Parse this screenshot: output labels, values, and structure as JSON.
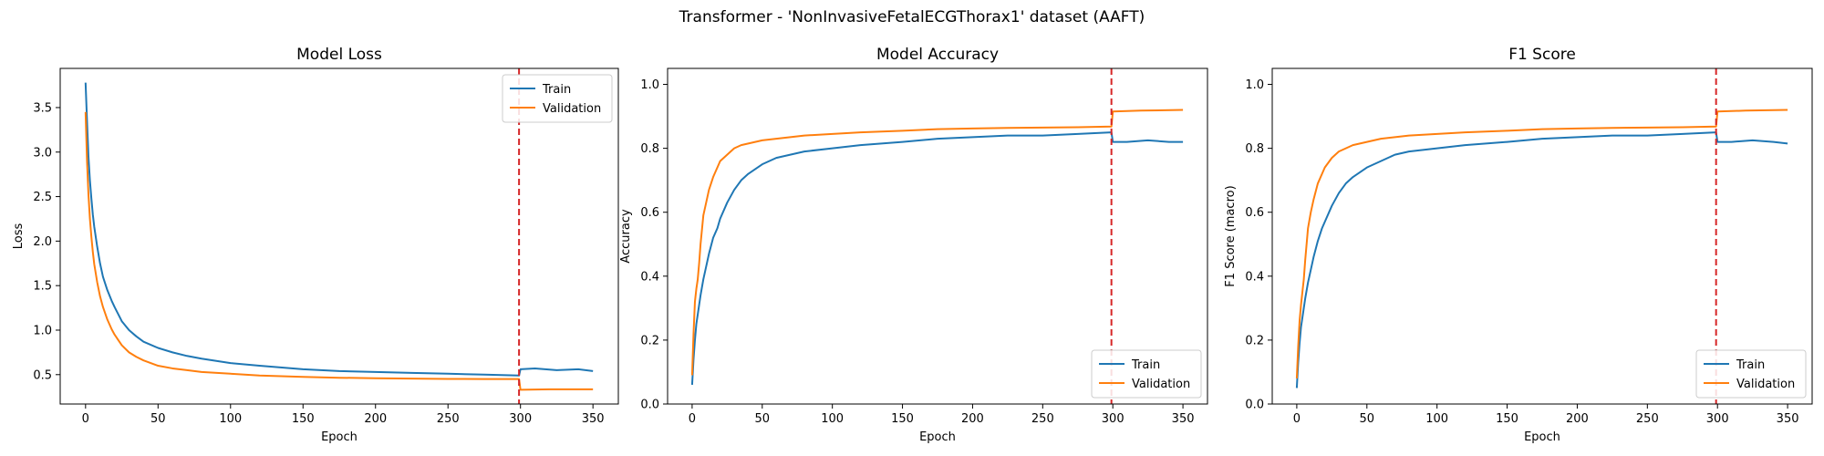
{
  "figure": {
    "suptitle": "Transformer - 'NonInvasiveFetalECGThorax1' dataset (AAFT)"
  },
  "colors": {
    "train": "#1f77b4",
    "validation": "#ff7f0e",
    "divider": "#d62728"
  },
  "chart_data": [
    {
      "type": "line",
      "title": "Model Loss",
      "xlabel": "Epoch",
      "ylabel": "Loss",
      "xlim": [
        -17.5,
        367.5
      ],
      "ylim": [
        0.17,
        3.94
      ],
      "xticks": [
        0,
        50,
        100,
        150,
        200,
        250,
        300,
        350
      ],
      "yticks": [
        0.5,
        1.0,
        1.5,
        2.0,
        2.5,
        3.0,
        3.5
      ],
      "ytick_labels": [
        "0.5",
        "1.0",
        "1.5",
        "2.0",
        "2.5",
        "3.0",
        "3.5"
      ],
      "vline_x": 299,
      "legend_position": "upper right",
      "series": [
        {
          "name": "Train",
          "x": [
            0,
            1,
            2,
            3,
            4,
            5,
            6,
            8,
            10,
            12,
            15,
            18,
            20,
            25,
            30,
            35,
            40,
            50,
            60,
            70,
            80,
            100,
            120,
            150,
            175,
            200,
            225,
            250,
            275,
            299,
            300,
            310,
            325,
            340,
            350
          ],
          "y": [
            3.78,
            3.35,
            2.95,
            2.68,
            2.48,
            2.3,
            2.16,
            1.94,
            1.75,
            1.6,
            1.45,
            1.33,
            1.26,
            1.1,
            1.0,
            0.93,
            0.87,
            0.8,
            0.75,
            0.71,
            0.68,
            0.63,
            0.6,
            0.56,
            0.54,
            0.53,
            0.52,
            0.51,
            0.5,
            0.49,
            0.56,
            0.57,
            0.55,
            0.56,
            0.54
          ]
        },
        {
          "name": "Validation",
          "x": [
            0,
            1,
            2,
            3,
            4,
            5,
            6,
            8,
            10,
            12,
            15,
            18,
            20,
            25,
            30,
            35,
            40,
            50,
            60,
            70,
            80,
            100,
            120,
            150,
            175,
            200,
            225,
            250,
            275,
            299,
            300,
            320,
            350
          ],
          "y": [
            3.45,
            2.9,
            2.52,
            2.25,
            2.05,
            1.88,
            1.74,
            1.54,
            1.38,
            1.26,
            1.12,
            1.01,
            0.95,
            0.83,
            0.75,
            0.7,
            0.66,
            0.6,
            0.57,
            0.55,
            0.53,
            0.51,
            0.49,
            0.475,
            0.465,
            0.46,
            0.455,
            0.452,
            0.45,
            0.45,
            0.33,
            0.335,
            0.335
          ]
        }
      ]
    },
    {
      "type": "line",
      "title": "Model Accuracy",
      "xlabel": "Epoch",
      "ylabel": "Accuracy",
      "xlim": [
        -17.5,
        367.5
      ],
      "ylim": [
        0.0,
        1.05
      ],
      "xticks": [
        0,
        50,
        100,
        150,
        200,
        250,
        300,
        350
      ],
      "yticks": [
        0.0,
        0.2,
        0.4,
        0.6,
        0.8,
        1.0
      ],
      "ytick_labels": [
        "0.0",
        "0.2",
        "0.4",
        "0.6",
        "0.8",
        "1.0"
      ],
      "vline_x": 299,
      "legend_position": "lower right",
      "series": [
        {
          "name": "Train",
          "x": [
            0,
            1,
            2,
            3,
            4,
            5,
            6,
            8,
            10,
            12,
            15,
            18,
            20,
            25,
            30,
            35,
            40,
            50,
            60,
            70,
            80,
            100,
            120,
            150,
            175,
            200,
            225,
            250,
            275,
            299,
            300,
            310,
            325,
            340,
            350
          ],
          "y": [
            0.06,
            0.14,
            0.2,
            0.25,
            0.28,
            0.31,
            0.34,
            0.39,
            0.43,
            0.47,
            0.52,
            0.55,
            0.58,
            0.63,
            0.67,
            0.7,
            0.72,
            0.75,
            0.77,
            0.78,
            0.79,
            0.8,
            0.81,
            0.82,
            0.83,
            0.835,
            0.84,
            0.84,
            0.845,
            0.85,
            0.82,
            0.82,
            0.825,
            0.82,
            0.82
          ]
        },
        {
          "name": "Validation",
          "x": [
            0,
            1,
            2,
            3,
            4,
            5,
            6,
            8,
            10,
            12,
            15,
            18,
            20,
            25,
            30,
            35,
            40,
            50,
            60,
            70,
            80,
            100,
            120,
            150,
            175,
            200,
            225,
            250,
            275,
            299,
            300,
            320,
            350
          ],
          "y": [
            0.09,
            0.22,
            0.32,
            0.36,
            0.39,
            0.44,
            0.5,
            0.59,
            0.63,
            0.67,
            0.71,
            0.74,
            0.76,
            0.78,
            0.8,
            0.81,
            0.815,
            0.825,
            0.83,
            0.835,
            0.84,
            0.845,
            0.85,
            0.855,
            0.86,
            0.862,
            0.864,
            0.865,
            0.866,
            0.868,
            0.915,
            0.918,
            0.92
          ]
        }
      ]
    },
    {
      "type": "line",
      "title": "F1 Score",
      "xlabel": "Epoch",
      "ylabel": "F1 Score (macro)",
      "xlim": [
        -17.5,
        367.5
      ],
      "ylim": [
        0.0,
        1.05
      ],
      "xticks": [
        0,
        50,
        100,
        150,
        200,
        250,
        300,
        350
      ],
      "yticks": [
        0.0,
        0.2,
        0.4,
        0.6,
        0.8,
        1.0
      ],
      "ytick_labels": [
        "0.0",
        "0.2",
        "0.4",
        "0.6",
        "0.8",
        "1.0"
      ],
      "vline_x": 299,
      "legend_position": "lower right",
      "series": [
        {
          "name": "Train",
          "x": [
            0,
            1,
            2,
            3,
            4,
            5,
            6,
            8,
            10,
            12,
            15,
            18,
            20,
            25,
            30,
            35,
            40,
            50,
            60,
            70,
            80,
            100,
            120,
            150,
            175,
            200,
            225,
            250,
            275,
            299,
            300,
            310,
            325,
            340,
            350
          ],
          "y": [
            0.05,
            0.13,
            0.19,
            0.24,
            0.27,
            0.3,
            0.33,
            0.38,
            0.42,
            0.46,
            0.51,
            0.55,
            0.57,
            0.62,
            0.66,
            0.69,
            0.71,
            0.74,
            0.76,
            0.78,
            0.79,
            0.8,
            0.81,
            0.82,
            0.83,
            0.835,
            0.84,
            0.84,
            0.845,
            0.85,
            0.82,
            0.82,
            0.825,
            0.82,
            0.815
          ]
        },
        {
          "name": "Validation",
          "x": [
            0,
            1,
            2,
            3,
            4,
            5,
            6,
            8,
            10,
            12,
            15,
            18,
            20,
            25,
            30,
            35,
            40,
            50,
            60,
            70,
            80,
            100,
            120,
            150,
            175,
            200,
            225,
            250,
            275,
            299,
            300,
            320,
            350
          ],
          "y": [
            0.08,
            0.18,
            0.26,
            0.31,
            0.35,
            0.39,
            0.45,
            0.55,
            0.6,
            0.64,
            0.69,
            0.72,
            0.74,
            0.77,
            0.79,
            0.8,
            0.81,
            0.82,
            0.83,
            0.835,
            0.84,
            0.845,
            0.85,
            0.855,
            0.86,
            0.862,
            0.864,
            0.865,
            0.866,
            0.868,
            0.915,
            0.918,
            0.92
          ]
        }
      ]
    }
  ]
}
